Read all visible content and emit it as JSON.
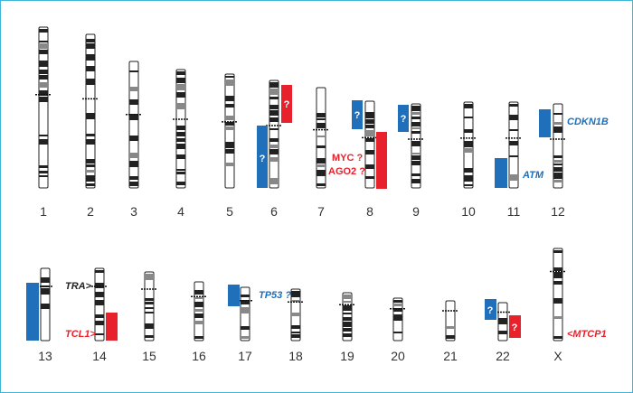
{
  "chromosomes": [
    "1",
    "2",
    "3",
    "4",
    "5",
    "6",
    "7",
    "8",
    "9",
    "10",
    "11",
    "12",
    "13",
    "14",
    "15",
    "16",
    "17",
    "18",
    "19",
    "20",
    "21",
    "22",
    "X"
  ],
  "colors": {
    "gain": "#e8222c",
    "loss": "#1f6fba",
    "frame": "#3fb6d8"
  },
  "genes": {
    "cdkn1b": "CDKN1B",
    "atm": "ATM",
    "myc": "MYC ?",
    "ago2": "AGO2 ?",
    "tra": "TRA>",
    "tcl1": "TCL1>",
    "tp53": "TP53 ?",
    "mtcp1": "<MTCP1"
  },
  "question_mark": "?"
}
